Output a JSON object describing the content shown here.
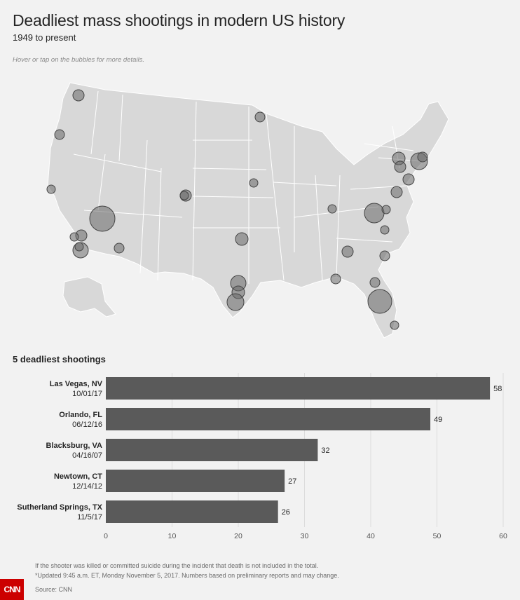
{
  "header": {
    "title": "Deadliest mass shootings in modern US history",
    "subtitle": "1949 to present",
    "hint": "Hover or tap on the bubbles for more details."
  },
  "map_bubbles": [
    {
      "name": "Las Vegas, NV",
      "size": "large"
    },
    {
      "name": "Orlando, FL",
      "size": "large"
    },
    {
      "name": "Sutherland Springs, TX",
      "size": "medium"
    },
    {
      "name": "Blacksburg, VA",
      "size": "medium"
    },
    {
      "name": "Newtown, CT",
      "size": "medium"
    }
  ],
  "chart_data": {
    "type": "bar",
    "orientation": "horizontal",
    "title": "5 deadliest shootings",
    "categories": [
      "Las Vegas, NV",
      "Orlando, FL",
      "Blacksburg, VA",
      "Newtown, CT",
      "Sutherland Springs, TX"
    ],
    "dates": [
      "10/01/17",
      "06/12/16",
      "04/16/07",
      "12/14/12",
      "11/5/17"
    ],
    "values": [
      58,
      49,
      32,
      27,
      26
    ],
    "xlim": [
      0,
      60
    ],
    "xticks": [
      0,
      10,
      20,
      30,
      40,
      50,
      60
    ],
    "grid": true,
    "bar_color": "#5a5a5a"
  },
  "footer": {
    "note1": "If the shooter was killed or committed suicide during the incident that death is not included in the total.",
    "note2": "*Updated 9:45 a.m. ET, Monday November 5, 2017. Numbers based on preliminary reports and may change.",
    "source": "Source: CNN",
    "logo": "CNN"
  }
}
